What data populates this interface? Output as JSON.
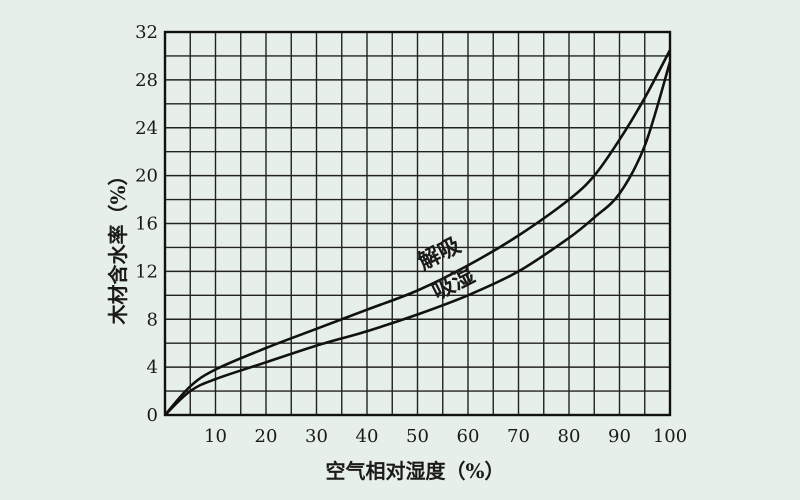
{
  "chart_data": {
    "type": "line",
    "xlabel": "空气相对湿度（%）",
    "ylabel": "木材含水率（%）",
    "xlim": [
      0,
      100
    ],
    "ylim": [
      0,
      32
    ],
    "x_ticks": [
      "10",
      "20",
      "30",
      "40",
      "50",
      "60",
      "70",
      "80",
      "90",
      "100"
    ],
    "y_ticks": [
      "0",
      "4",
      "8",
      "12",
      "16",
      "20",
      "24",
      "28",
      "32"
    ],
    "grid": true,
    "series": [
      {
        "name": "解吸",
        "x": [
          0,
          5,
          10,
          20,
          30,
          40,
          50,
          60,
          70,
          80,
          85,
          90,
          95,
          100
        ],
        "y": [
          0,
          2.4,
          3.8,
          5.6,
          7.2,
          8.8,
          10.4,
          12.5,
          15.0,
          18.0,
          20.0,
          23.0,
          26.5,
          30.5
        ]
      },
      {
        "name": "吸湿",
        "x": [
          0,
          5,
          10,
          20,
          30,
          40,
          50,
          60,
          70,
          80,
          85,
          90,
          95,
          100
        ],
        "y": [
          0,
          2.0,
          3.0,
          4.4,
          5.8,
          7.0,
          8.4,
          10.0,
          12.0,
          14.8,
          16.5,
          18.5,
          22.5,
          29.5
        ]
      }
    ],
    "annotations": [
      "解吸",
      "吸湿"
    ]
  }
}
